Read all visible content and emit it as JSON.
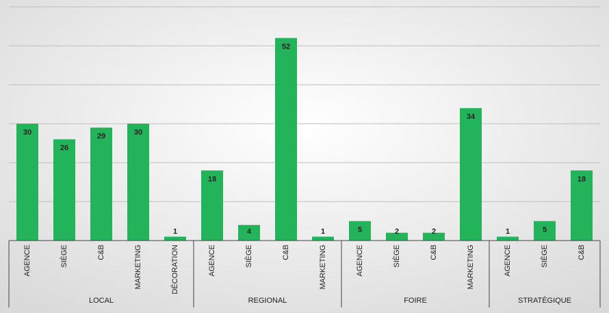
{
  "chart_data": {
    "type": "bar",
    "color": "#22b35b",
    "groups": [
      {
        "name": "LOCAL",
        "categories": [
          "AGENCE",
          "SIÈGE",
          "C&B",
          "MARKETING",
          "DÉCORATION"
        ],
        "values": [
          30,
          26,
          29,
          30,
          1
        ]
      },
      {
        "name": "REGIONAL",
        "categories": [
          "AGENCE",
          "SIÈGE",
          "C&B",
          "MARKETING"
        ],
        "values": [
          18,
          4,
          52,
          1
        ]
      },
      {
        "name": "FOIRE",
        "categories": [
          "AGENCE",
          "SIÈGE",
          "C&B",
          "MARKETING"
        ],
        "values": [
          5,
          2,
          2,
          34
        ]
      },
      {
        "name": "STRATÉGIQUE",
        "categories": [
          "AGENCE",
          "SIÈGE",
          "C&B"
        ],
        "values": [
          1,
          5,
          18
        ]
      }
    ],
    "ylim": [
      0,
      60
    ],
    "yticks": [
      0,
      10,
      20,
      30,
      40,
      50,
      60
    ],
    "grid": true,
    "ytick_labels": false
  }
}
